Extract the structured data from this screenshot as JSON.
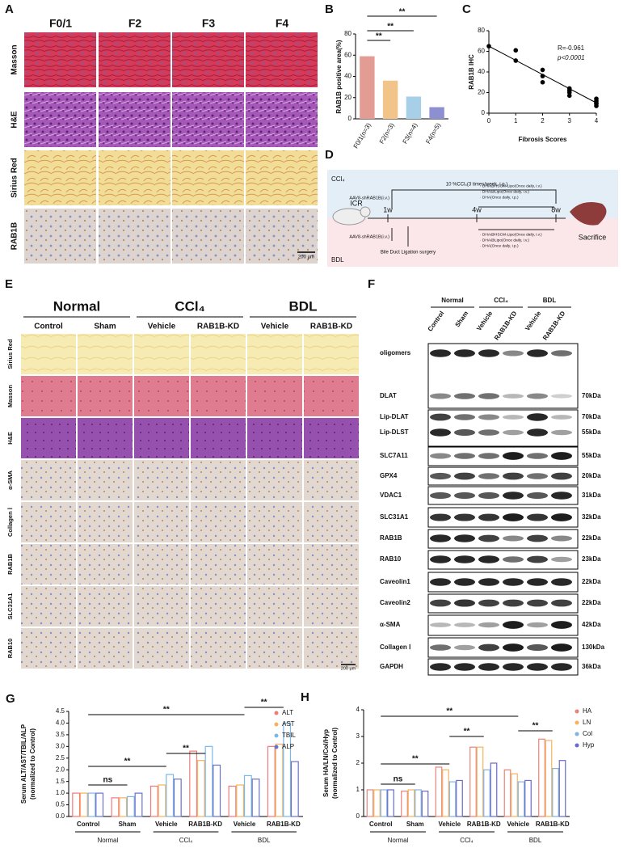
{
  "panel_a": {
    "label": "A",
    "columns": [
      "F0/1",
      "F2",
      "F3",
      "F4"
    ],
    "rows": [
      "Masson",
      "H&E",
      "Sirius Red",
      "RAB1B"
    ],
    "scale_bar": "200 μm"
  },
  "chart_data": [
    {
      "type": "bar",
      "panel_label": "B",
      "ylabel": "RAB1B positive area(%)",
      "categories": [
        "F0/1(n=3)",
        "F2(n=3)",
        "F3(n=4)",
        "F4(n=5)"
      ],
      "values": [
        59,
        36,
        21,
        11
      ],
      "colors": [
        "#e39c93",
        "#f3c48a",
        "#a7cfe8",
        "#8c8fd0"
      ],
      "ylim": [
        0,
        80
      ],
      "yticks": [
        0,
        20,
        40,
        60,
        80
      ],
      "annotations": [
        "**",
        "**",
        "**"
      ]
    },
    {
      "type": "scatter",
      "panel_label": "C",
      "xlabel": "Fibrosis Scores",
      "ylabel": "RAB1B IHC",
      "x": [
        0,
        1,
        1,
        2,
        2,
        2,
        3,
        3,
        3,
        3,
        4,
        4,
        4,
        4,
        4
      ],
      "y": [
        65,
        61,
        51,
        42,
        36,
        30,
        24,
        22,
        20,
        17,
        14,
        12,
        10,
        9,
        7
      ],
      "fit": {
        "x": [
          0,
          4
        ],
        "y": [
          65,
          10
        ]
      },
      "xlim": [
        0,
        4
      ],
      "xticks": [
        0,
        1,
        2,
        3,
        4
      ],
      "ylim": [
        0,
        80
      ],
      "yticks": [
        0,
        20,
        40,
        60,
        80
      ],
      "annotations": [
        "R=-0.961",
        "p<0.0001"
      ]
    },
    {
      "type": "grouped_bar",
      "panel_label": "G",
      "ylabel": [
        "Serum ALT/AST/TBIL/ALP",
        "(normalized to Control)"
      ],
      "categories": [
        "Control",
        "Sham",
        "Vehicle",
        "RAB1B-KD",
        "Vehicle",
        "RAB1B-KD"
      ],
      "groups": [
        "Normal",
        "CCl₄",
        "BDL"
      ],
      "series": [
        {
          "name": "ALT",
          "color": "#f07a7a",
          "values": [
            1.0,
            0.8,
            1.3,
            2.8,
            1.3,
            3.0
          ]
        },
        {
          "name": "AST",
          "color": "#f5b060",
          "values": [
            1.0,
            0.8,
            1.35,
            2.4,
            1.35,
            3.1
          ]
        },
        {
          "name": "TBIL",
          "color": "#7ab8e8",
          "values": [
            1.0,
            0.85,
            1.8,
            3.0,
            1.75,
            4.0
          ]
        },
        {
          "name": "ALP",
          "color": "#6b72c8",
          "values": [
            1.0,
            1.0,
            1.6,
            2.2,
            1.6,
            2.35
          ]
        }
      ],
      "ylim": [
        0,
        4.5
      ],
      "yticks": [
        {
          "value": 0,
          "label": "0.0"
        },
        0.5,
        {
          "value": 1,
          "label": "1.0"
        },
        1.5,
        {
          "value": 2,
          "label": "2.0"
        },
        2.5,
        {
          "value": 3,
          "label": "3.0"
        },
        3.5,
        {
          "value": 4,
          "label": "4.0"
        },
        4.5
      ],
      "annotations": [
        "ns",
        "**",
        "**",
        "**",
        "**"
      ]
    },
    {
      "type": "grouped_bar",
      "panel_label": "H",
      "ylabel": [
        "Serum HA/LN/Col/Hyp",
        "(normalized to Control)"
      ],
      "categories": [
        "Control",
        "Sham",
        "Vehicle",
        "RAB1B-KD",
        "Vehicle",
        "RAB1B-KD"
      ],
      "groups": [
        "Normal",
        "CCl₄",
        "BDL"
      ],
      "series": [
        {
          "name": "HA",
          "color": "#e8837a",
          "values": [
            1.0,
            0.95,
            1.85,
            2.6,
            1.75,
            2.9
          ]
        },
        {
          "name": "LN",
          "color": "#f5b25e",
          "values": [
            1.0,
            1.0,
            1.75,
            2.6,
            1.6,
            2.85
          ]
        },
        {
          "name": "Col",
          "color": "#7fb3e0",
          "values": [
            1.0,
            1.0,
            1.3,
            1.75,
            1.3,
            1.8
          ]
        },
        {
          "name": "Hyp",
          "color": "#6a6ac8",
          "values": [
            1.0,
            0.95,
            1.35,
            2.0,
            1.35,
            2.1
          ]
        }
      ],
      "ylim": [
        0,
        4
      ],
      "yticks": [
        0,
        1,
        2,
        3,
        4
      ],
      "annotations": [
        "ns",
        "**",
        "**",
        "**",
        "**"
      ]
    }
  ],
  "panel_d": {
    "label": "D",
    "top_model": "CCl₄",
    "bottom_model": "BDL",
    "ccl4_dosing": "10 %CCl₄(3 times/week, i.p.)",
    "aav_top": "AAV8-shRAB1B(i.v.)",
    "aav_bottom": "AAV8-shRAB1B(i.v.)",
    "mouse": "ICR",
    "timepoints": [
      "1w",
      "4w",
      "8w"
    ],
    "sacrifice": "Sacrifice",
    "surgery": "Bile Duct Ligation surgery",
    "treatments_top": [
      "· DHA@HSCM-Lipo(Once daily, i.v.)",
      "· DHA@Lipo(Once daily, i.v.)",
      "· DHA(Once daily, i.p.)"
    ],
    "treatments_bottom": [
      "· DHA@HSCM-Lipo(Once daily, i.v.)",
      "· DHA@Lipo(Once daily, i.v.)",
      "· DHA(Once daily, i.p.)"
    ]
  },
  "panel_e": {
    "label": "E",
    "groups": [
      "Normal",
      "CCl₄",
      "BDL"
    ],
    "columns": [
      "Control",
      "Sham",
      "Vehicle",
      "RAB1B-KD",
      "Vehicle",
      "RAB1B-KD"
    ],
    "rows": [
      "Sirius Red",
      "Masson",
      "H&E",
      "α-SMA",
      "Collagen Ⅰ",
      "RAB1B",
      "SLC31A1",
      "RAB10"
    ],
    "scale_bar": "200 μm"
  },
  "panel_f": {
    "label": "F",
    "groups": [
      "Normal",
      "CCl₄",
      "BDL"
    ],
    "lanes": [
      "Control",
      "Sham",
      "Vehicle",
      "RAB1B-KD",
      "Vehicle",
      "RAB1B-KD"
    ],
    "rows": [
      {
        "label": "oligomers"
      },
      {
        "label": "DLAT",
        "size": "70kDa"
      },
      {
        "label": "Lip-DLAT",
        "size": "70kDa"
      },
      {
        "label": "Lip-DLST",
        "size": "55kDa"
      },
      {
        "label": "SLC7A11",
        "size": "55kDa"
      },
      {
        "label": "GPX4",
        "size": "20kDa"
      },
      {
        "label": "VDAC1",
        "size": "31kDa"
      },
      {
        "label": "SLC31A1",
        "size": "32kDa"
      },
      {
        "label": "RAB1B",
        "size": "22kDa"
      },
      {
        "label": "RAB10",
        "size": "23kDa"
      },
      {
        "label": "Caveolin1",
        "size": "22kDa"
      },
      {
        "label": "Caveolin2",
        "size": "22kDa"
      },
      {
        "label": "α-SMA",
        "size": "42kDa"
      },
      {
        "label": "Collagen Ⅰ",
        "size": "130kDa"
      },
      {
        "label": "GAPDH",
        "size": "36kDa"
      }
    ]
  }
}
